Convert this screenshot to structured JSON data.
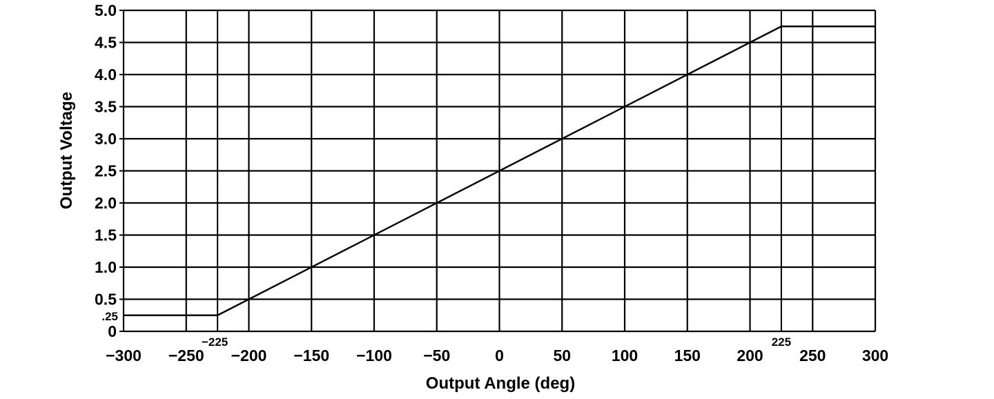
{
  "chart_data": {
    "type": "line",
    "title": "",
    "xlabel": "Output Angle (deg)",
    "ylabel": "Output Voltage",
    "xlim": [
      -300,
      300
    ],
    "ylim": [
      0,
      5.0
    ],
    "grid": true,
    "x_ticks": [
      -300,
      -250,
      -200,
      -150,
      -100,
      -50,
      0,
      50,
      100,
      150,
      200,
      250,
      300
    ],
    "x_tick_labels": [
      "−300",
      "−250",
      "−200",
      "−150",
      "−100",
      "−50",
      "0",
      "50",
      "100",
      "150",
      "200",
      "250",
      "300"
    ],
    "y_ticks": [
      0,
      0.5,
      1.0,
      1.5,
      2.0,
      2.5,
      3.0,
      3.5,
      4.0,
      4.5,
      5.0
    ],
    "y_tick_labels": [
      "0",
      "0.5",
      "1.0",
      "1.5",
      "2.0",
      "2.5",
      "3.0",
      "3.5",
      "4.0",
      "4.5",
      "5.0"
    ],
    "extra_gridlines": {
      "x": [
        -225,
        225
      ],
      "y": [
        0.25
      ]
    },
    "series": [
      {
        "x": [
          -300,
          -225,
          225,
          300
        ],
        "y": [
          0.25,
          0.25,
          4.75,
          4.75
        ],
        "color": "#000000"
      }
    ],
    "annotations": [
      {
        "text": "−225",
        "x": -225,
        "y": 0
      },
      {
        "text": "225",
        "x": 225,
        "y": 0
      },
      {
        "text": ".25",
        "x": -300,
        "y": 0.25
      }
    ]
  }
}
